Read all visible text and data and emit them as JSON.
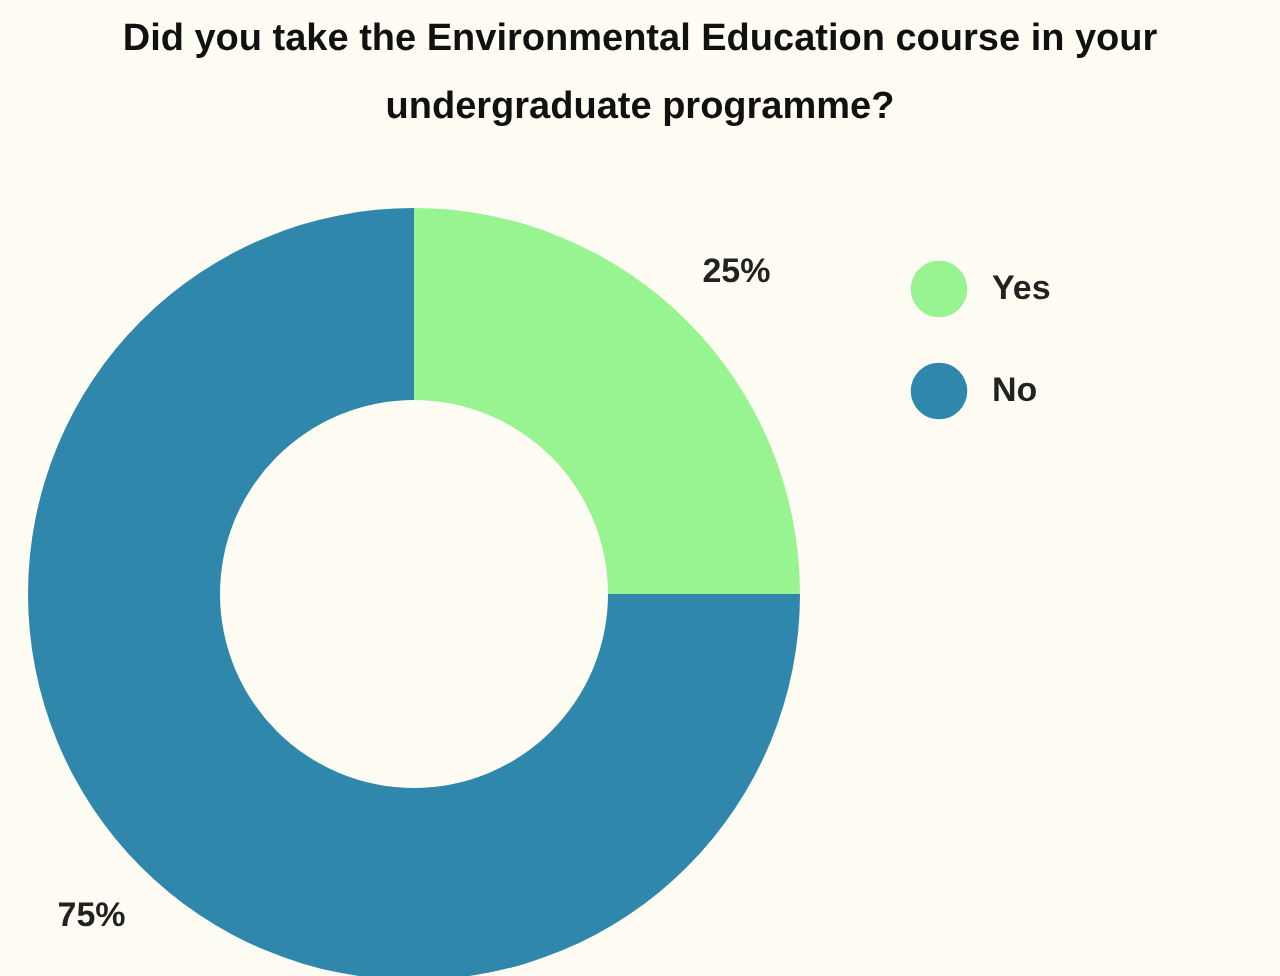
{
  "chart_data": {
    "type": "donut",
    "title": "Did you take the Environmental Education course in your undergraduate programme?",
    "categories": [
      "Yes",
      "No"
    ],
    "values": [
      25,
      75
    ],
    "colors": [
      "#98f391",
      "#2f87ab"
    ],
    "value_labels": [
      "25%",
      "75%"
    ],
    "legend": "top right"
  }
}
